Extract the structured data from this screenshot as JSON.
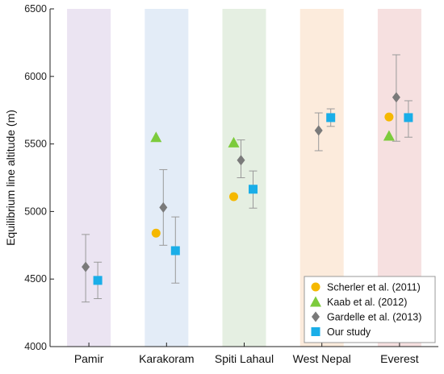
{
  "chart_data": {
    "type": "scatter",
    "ylabel": "Equilibrium line altitude (m)",
    "ylim": [
      4000,
      6500
    ],
    "yticks": [
      4000,
      4500,
      5000,
      5500,
      6000,
      6500
    ],
    "categories": [
      "Pamir",
      "Karakoram",
      "Spiti Lahaul",
      "West Nepal",
      "Everest"
    ],
    "band_colors": [
      "#ebe4f2",
      "#e3ecf7",
      "#e5efe2",
      "#fcebdc",
      "#f6e0e0"
    ],
    "legend_position": "bottom-right",
    "series": [
      {
        "name": "Scherler et al. (2011)",
        "marker": "circle",
        "color": "#f5b800",
        "points": [
          {
            "category": "Karakoram",
            "y": 4840
          },
          {
            "category": "Spiti Lahaul",
            "y": 5110
          },
          {
            "category": "Everest",
            "y": 5700
          }
        ]
      },
      {
        "name": "Kaab et al. (2012)",
        "marker": "triangle",
        "color": "#7ccb3c",
        "points": [
          {
            "category": "Karakoram",
            "y": 5550
          },
          {
            "category": "Spiti Lahaul",
            "y": 5510
          },
          {
            "category": "Everest",
            "y": 5560
          }
        ]
      },
      {
        "name": "Gardelle et al. (2013)",
        "marker": "diamond",
        "color": "#7a7a7a",
        "points": [
          {
            "category": "Pamir",
            "y": 4590,
            "err_low": 4330,
            "err_high": 4830
          },
          {
            "category": "Karakoram",
            "y": 5030,
            "err_low": 4750,
            "err_high": 5310
          },
          {
            "category": "Spiti Lahaul",
            "y": 5380,
            "err_low": 5250,
            "err_high": 5530
          },
          {
            "category": "West Nepal",
            "y": 5600,
            "err_low": 5450,
            "err_high": 5730
          },
          {
            "category": "Everest",
            "y": 5845,
            "err_low": 5520,
            "err_high": 6160
          }
        ]
      },
      {
        "name": "Our study",
        "marker": "square",
        "color": "#1aaee8",
        "points": [
          {
            "category": "Pamir",
            "y": 4490,
            "err_low": 4355,
            "err_high": 4625
          },
          {
            "category": "Karakoram",
            "y": 4710,
            "err_low": 4470,
            "err_high": 4960
          },
          {
            "category": "Spiti Lahaul",
            "y": 5165,
            "err_low": 5025,
            "err_high": 5300
          },
          {
            "category": "West Nepal",
            "y": 5695,
            "err_low": 5630,
            "err_high": 5760
          },
          {
            "category": "Everest",
            "y": 5695,
            "err_low": 5550,
            "err_high": 5820
          }
        ]
      }
    ]
  }
}
